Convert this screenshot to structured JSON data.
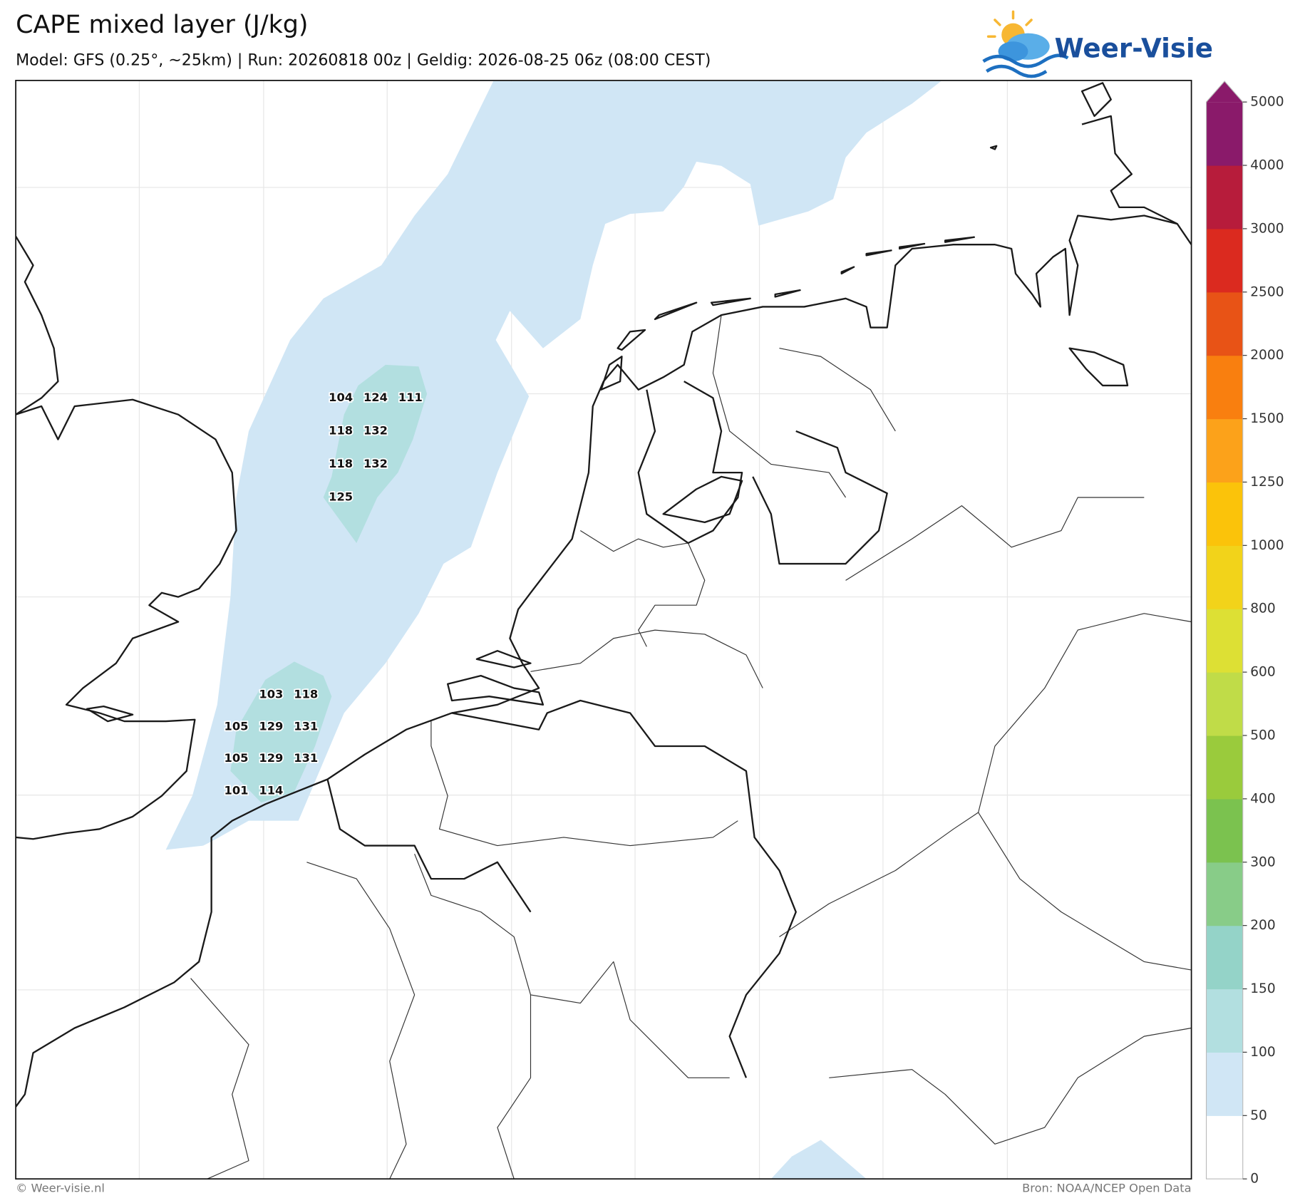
{
  "header": {
    "title": "CAPE mixed layer (J/kg)",
    "subtitle": "Model: GFS (0.25°, ~25km)  |  Run: 20260818 00z  |  Geldig: 2026-08-25 06z (08:00 CEST)"
  },
  "logo": {
    "text": "Weer-Visie"
  },
  "map": {
    "point_values": [
      104,
      124,
      111,
      118,
      132,
      118,
      132,
      125,
      103,
      118,
      105,
      129,
      131,
      105,
      129,
      131,
      101,
      114
    ]
  },
  "colorbar": {
    "ticks": [
      0,
      50,
      100,
      150,
      200,
      300,
      400,
      500,
      600,
      800,
      1000,
      1250,
      1500,
      2000,
      2500,
      3000,
      4000,
      5000
    ],
    "colors": [
      "#ffffff",
      "#d0e6f5",
      "#b2dfe0",
      "#94d3c8",
      "#88cc88",
      "#7bc24f",
      "#9acb3c",
      "#c0dc48",
      "#dde034",
      "#f2d31a",
      "#fbc30a",
      "#fca21a",
      "#f97f0f",
      "#e85316",
      "#db2a1f",
      "#b71c3b",
      "#8a1a6a"
    ]
  },
  "footer": {
    "left": "© Weer-visie.nl",
    "right": "Bron: NOAA/NCEP Open Data"
  }
}
